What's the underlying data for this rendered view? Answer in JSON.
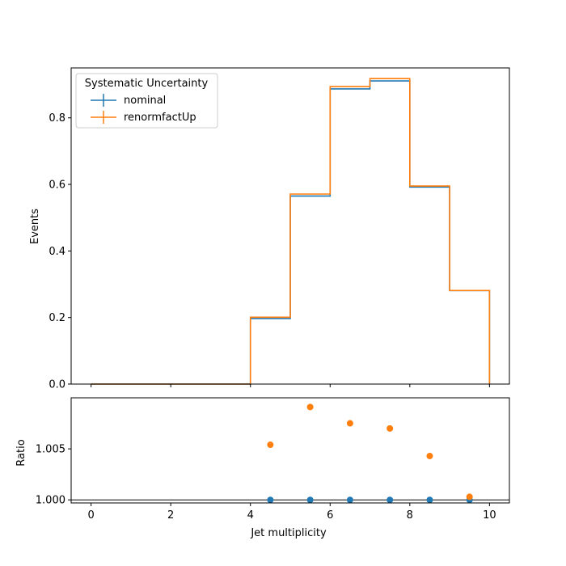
{
  "chart_data": [
    {
      "type": "step",
      "xlabel": "",
      "ylabel": "Events",
      "xlim": [
        -0.5,
        10.5
      ],
      "ylim": [
        0,
        0.95
      ],
      "xticks": [
        0,
        2,
        4,
        6,
        8,
        10
      ],
      "yticks": [
        0.0,
        0.2,
        0.4,
        0.6,
        0.8
      ],
      "ytick_labels": [
        "0.0",
        "0.2",
        "0.4",
        "0.6",
        "0.8"
      ],
      "bin_edges": [
        0,
        1,
        2,
        3,
        4,
        5,
        6,
        7,
        8,
        9,
        10
      ],
      "legend": {
        "title": "Systematic Uncertainty",
        "position": "upper-left"
      },
      "series": [
        {
          "name": "nominal",
          "color": "#1f77b4",
          "values": [
            0,
            0,
            0,
            0,
            0.197,
            0.565,
            0.887,
            0.911,
            0.592,
            0.281
          ]
        },
        {
          "name": "renormfactUp",
          "color": "#ff7f0e",
          "values": [
            0,
            0,
            0,
            0,
            0.201,
            0.571,
            0.894,
            0.918,
            0.595,
            0.281
          ]
        }
      ]
    },
    {
      "type": "scatter",
      "xlabel": "Jet multiplicity",
      "ylabel": "Ratio",
      "xlim": [
        -0.5,
        10.5
      ],
      "ylim": [
        0.9997,
        1.01
      ],
      "xticks": [
        0,
        2,
        4,
        6,
        8,
        10
      ],
      "xtick_labels": [
        "0",
        "2",
        "4",
        "6",
        "8",
        "10"
      ],
      "yticks": [
        1.0,
        1.005
      ],
      "ytick_labels": [
        "1.000",
        "1.005"
      ],
      "reference_line": 1.0,
      "x": [
        4.5,
        5.5,
        6.5,
        7.5,
        8.5,
        9.5
      ],
      "series": [
        {
          "name": "nominal",
          "color": "#1f77b4",
          "values": [
            1.0,
            1.0,
            1.0,
            1.0,
            1.0,
            1.0
          ]
        },
        {
          "name": "renormfactUp",
          "color": "#ff7f0e",
          "values": [
            1.0054,
            1.0091,
            1.0075,
            1.007,
            1.0043,
            1.0003
          ]
        }
      ]
    }
  ]
}
